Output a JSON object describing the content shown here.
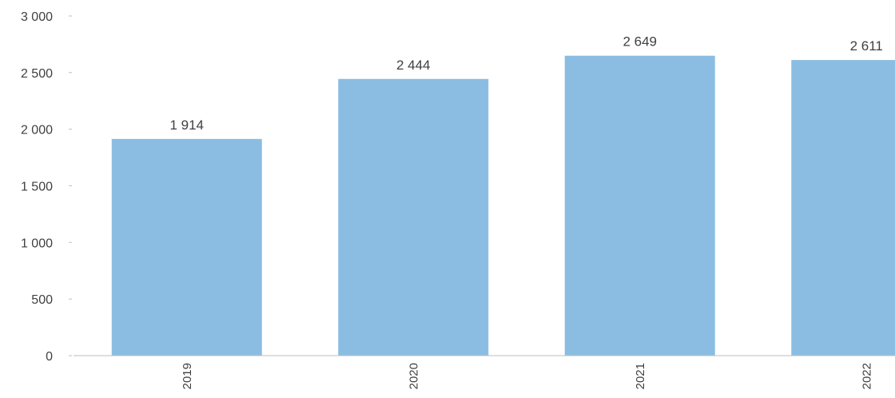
{
  "chart_data": {
    "type": "bar",
    "categories": [
      "2019",
      "2020",
      "2021",
      "2022"
    ],
    "values": [
      1914,
      2444,
      2649,
      2611
    ],
    "data_labels": [
      "1 914",
      "2 444",
      "2 649",
      "2 611"
    ],
    "y_ticks": [
      0,
      500,
      1000,
      1500,
      2000,
      2500,
      3000
    ],
    "y_tick_labels": [
      "0",
      "500",
      "1 000",
      "1 500",
      "2 000",
      "2 500",
      "3 000"
    ],
    "ylim": [
      0,
      3000
    ],
    "bar_color": "#8BBDE3",
    "axis_color": "#BFBFBF",
    "text_color": "#404040",
    "grid": false,
    "legend": "none",
    "x_label_orientation": "vertical"
  }
}
